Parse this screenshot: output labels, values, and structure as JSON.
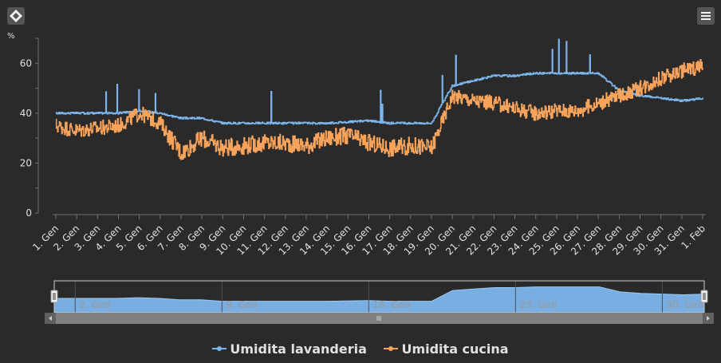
{
  "toolbar": {
    "reset_icon": "diamond-icon",
    "menu_icon": "hamburger-menu-icon"
  },
  "colors": {
    "background": "#2a2a2b",
    "series1": "#7cb5ec",
    "series2": "#f7a35c",
    "navigator": "#7cb5ec"
  },
  "chart_data": {
    "type": "line",
    "ylabel": "%",
    "ylim": [
      0,
      70
    ],
    "yticks": [
      0,
      20,
      40,
      60
    ],
    "xlim": [
      "2025-01-01",
      "2025-02-01"
    ],
    "x_tick_labels": [
      "1. Gen",
      "2. Gen",
      "3. Gen",
      "4. Gen",
      "5. Gen",
      "6. Gen",
      "7. Gen",
      "8. Gen",
      "9. Gen",
      "10. Gen",
      "11. Gen",
      "12. Gen",
      "13. Gen",
      "14. Gen",
      "15. Gen",
      "16. Gen",
      "17. Gen",
      "18. Gen",
      "19. Gen",
      "20. Gen",
      "21. Gen",
      "22. Gen",
      "23. Gen",
      "24. Gen",
      "25. Gen",
      "26. Gen",
      "27. Gen",
      "28. Gen",
      "29. Gen",
      "30. Gen",
      "31. Gen",
      "1. Feb"
    ],
    "grid": false,
    "legend_position": "bottom-center",
    "series": [
      {
        "name": "Umidita lavanderia",
        "color": "#7cb5ec",
        "x": [
          "2025-01-01",
          "2025-01-03",
          "2025-01-04",
          "2025-01-05",
          "2025-01-06",
          "2025-01-07",
          "2025-01-08",
          "2025-01-09",
          "2025-01-10",
          "2025-01-12",
          "2025-01-14",
          "2025-01-16",
          "2025-01-17",
          "2025-01-18",
          "2025-01-19",
          "2025-01-20",
          "2025-01-21",
          "2025-01-22",
          "2025-01-23",
          "2025-01-24",
          "2025-01-25",
          "2025-01-26",
          "2025-01-27",
          "2025-01-28",
          "2025-01-29",
          "2025-01-30",
          "2025-01-31",
          "2025-02-01"
        ],
        "values": [
          40,
          40,
          40,
          41,
          40,
          38,
          38,
          36,
          36,
          36,
          36,
          37,
          36,
          36,
          36,
          51,
          53,
          55,
          55,
          56,
          56,
          56,
          56,
          49,
          47,
          46,
          45,
          46
        ]
      },
      {
        "name": "Umidita cucina",
        "color": "#f7a35c",
        "x": [
          "2025-01-01",
          "2025-01-02",
          "2025-01-03",
          "2025-01-04",
          "2025-01-05",
          "2025-01-06",
          "2025-01-07",
          "2025-01-08",
          "2025-01-09",
          "2025-01-10",
          "2025-01-11",
          "2025-01-12",
          "2025-01-13",
          "2025-01-14",
          "2025-01-15",
          "2025-01-16",
          "2025-01-17",
          "2025-01-18",
          "2025-01-19",
          "2025-01-20",
          "2025-01-21",
          "2025-01-22",
          "2025-01-23",
          "2025-01-24",
          "2025-01-25",
          "2025-01-26",
          "2025-01-27",
          "2025-01-28",
          "2025-01-29",
          "2025-01-30",
          "2025-01-31",
          "2025-02-01"
        ],
        "values": [
          35,
          33,
          34,
          35,
          40,
          36,
          24,
          30,
          26,
          27,
          28,
          28,
          27,
          30,
          31,
          28,
          26,
          27,
          26,
          47,
          45,
          44,
          42,
          40,
          41,
          41,
          44,
          47,
          50,
          54,
          57,
          59
        ]
      }
    ]
  },
  "navigator": {
    "labels": [
      "2. Gen",
      "9. Gen",
      "16. Gen",
      "23. Gen",
      "30. Gen"
    ]
  },
  "legend": {
    "items": [
      "Umidita lavanderia",
      "Umidita cucina"
    ]
  }
}
